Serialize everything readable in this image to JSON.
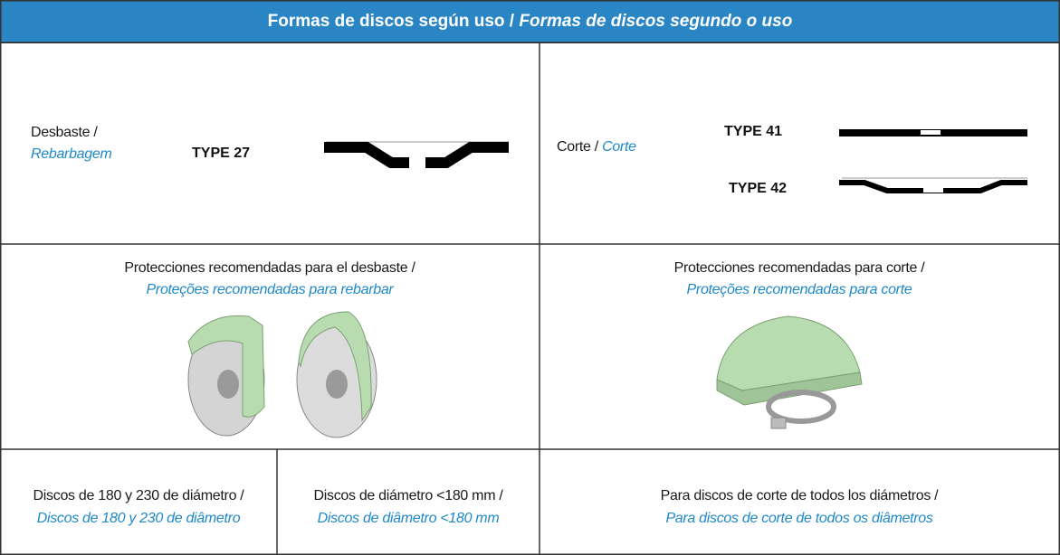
{
  "header": {
    "title": "Formas de discos según uso /",
    "title_translation": "Formas de discos segundo o uso"
  },
  "shapes": [
    {
      "label": "Desbaste /",
      "translation": "Rebarbagem",
      "types": [
        "TYPE 27"
      ]
    },
    {
      "label": "Corte /",
      "translation": "Corte",
      "types": [
        "TYPE 41",
        "TYPE 42"
      ]
    }
  ],
  "guards": [
    {
      "label": "Protecciones recomendadas para el desbaste /",
      "translation": "Proteções recomendadas para rebarbar"
    },
    {
      "label": "Protecciones recomendadas para corte /",
      "translation": "Proteções recomendadas para corte"
    }
  ],
  "usage": [
    {
      "label": "Discos de 180 y 230 de diámetro /",
      "translation": "Discos de 180 y 230 de diâmetro"
    },
    {
      "label": "Discos de diámetro <180 mm /",
      "translation": "Discos de diâmetro <180 mm"
    },
    {
      "label": "Para discos de corte de todos los diámetros /",
      "translation": "Para discos de corte de todos os diâmetros"
    }
  ]
}
